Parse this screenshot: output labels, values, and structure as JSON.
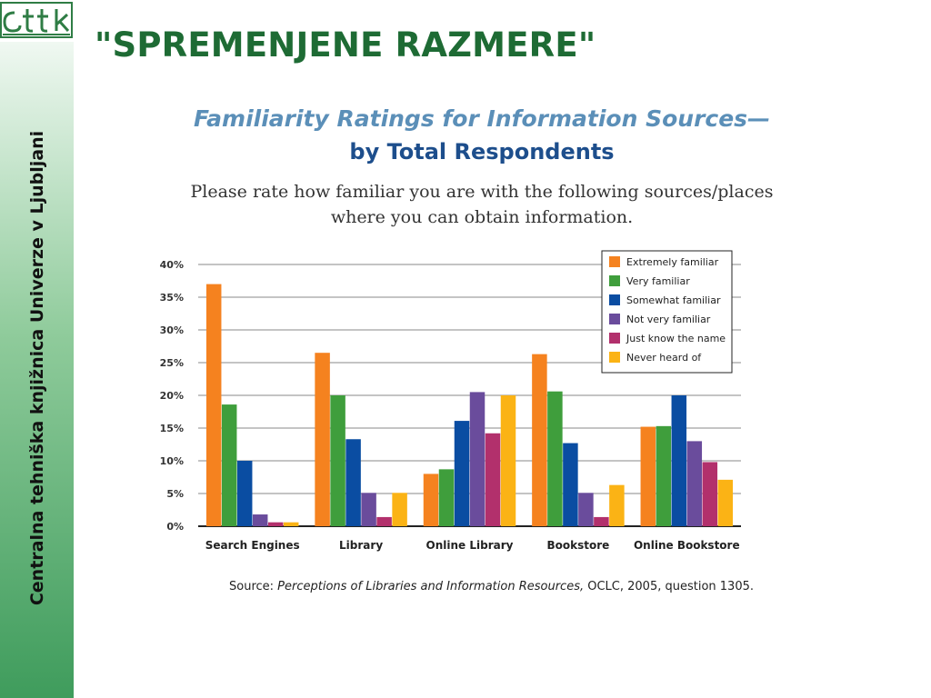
{
  "slide": {
    "title": "\"SPREMENJENE RAZMERE\"",
    "sidebar_text": "Centralna tehniška knjižnica Univerze v Ljubljani",
    "logo_icon": "ctk-logo"
  },
  "colors": {
    "title_green": "#1e6b34",
    "chart_title_light": "#5b8fb8",
    "chart_title_dark": "#1d4e8c"
  },
  "source": {
    "prefix": "Source:",
    "title": "Perceptions of Libraries and Information Resources,",
    "suffix": "OCLC, 2005, question 1305."
  },
  "chart_data": {
    "type": "bar",
    "title": "Familiarity Ratings for Information Sources—",
    "subtitle": "by Total Respondents",
    "question_line1": "Please rate how familiar you are with the following sources/places",
    "question_line2": "where you can obtain information.",
    "categories": [
      "Search Engines",
      "Library",
      "Online Library",
      "Bookstore",
      "Online Bookstore"
    ],
    "ylim": [
      0,
      40
    ],
    "yticks": [
      0,
      5,
      10,
      15,
      20,
      25,
      30,
      35,
      40
    ],
    "ytick_labels": [
      "0%",
      "5%",
      "10%",
      "15%",
      "20%",
      "25%",
      "30%",
      "35%",
      "40%"
    ],
    "grid": true,
    "legend_position": "top-right",
    "series": [
      {
        "name": "Extremely familiar",
        "color": "#f5821f",
        "values": [
          37,
          26.5,
          8,
          26.3,
          15.2
        ]
      },
      {
        "name": "Very familiar",
        "color": "#3f9e3c",
        "values": [
          18.6,
          20,
          8.7,
          20.6,
          15.3
        ]
      },
      {
        "name": "Somewhat familiar",
        "color": "#0a4da2",
        "values": [
          10,
          13.3,
          16.1,
          12.7,
          20
        ]
      },
      {
        "name": "Not very familiar",
        "color": "#6a4c9c",
        "values": [
          1.8,
          5.1,
          20.5,
          5.1,
          13
        ]
      },
      {
        "name": "Just know the name",
        "color": "#b2306c",
        "values": [
          0.6,
          1.4,
          14.2,
          1.4,
          9.8
        ]
      },
      {
        "name": "Never heard of",
        "color": "#fbb315",
        "values": [
          0.6,
          5.1,
          20,
          6.3,
          7.1
        ]
      }
    ]
  }
}
